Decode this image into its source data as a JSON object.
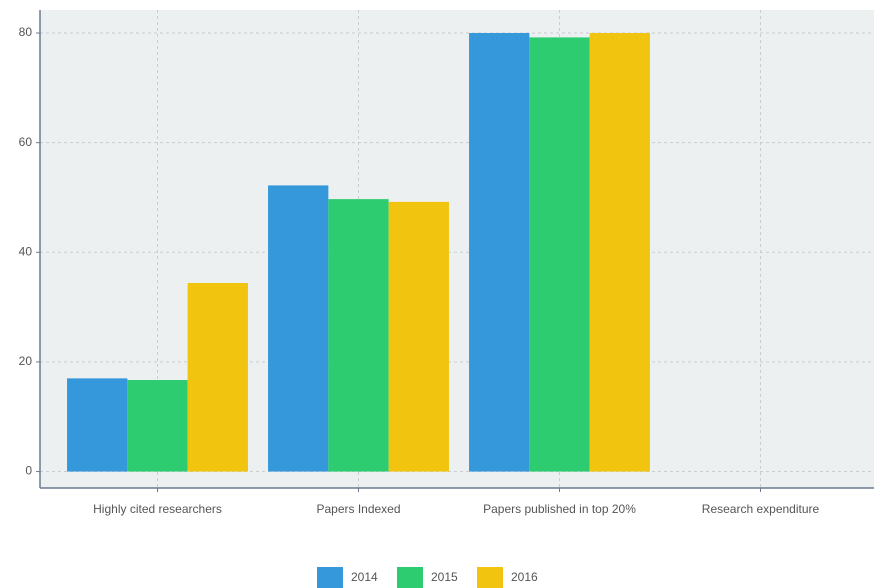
{
  "chart_data": {
    "type": "bar",
    "categories": [
      "Highly cited researchers",
      "Papers Indexed",
      "Papers published in top 20%",
      "Research expenditure"
    ],
    "series": [
      {
        "name": "2014",
        "color": "#3498db",
        "values": [
          17,
          52.2,
          80,
          null
        ]
      },
      {
        "name": "2015",
        "color": "#2ecc71",
        "values": [
          16.7,
          49.7,
          79.2,
          null
        ]
      },
      {
        "name": "2016",
        "color": "#f1c40f",
        "values": [
          34.4,
          49.2,
          80,
          null
        ]
      }
    ],
    "ylim": [
      -3,
      84.2
    ],
    "yticks": [
      0,
      20,
      40,
      60,
      80
    ],
    "grid": true,
    "legend": "bottom"
  }
}
